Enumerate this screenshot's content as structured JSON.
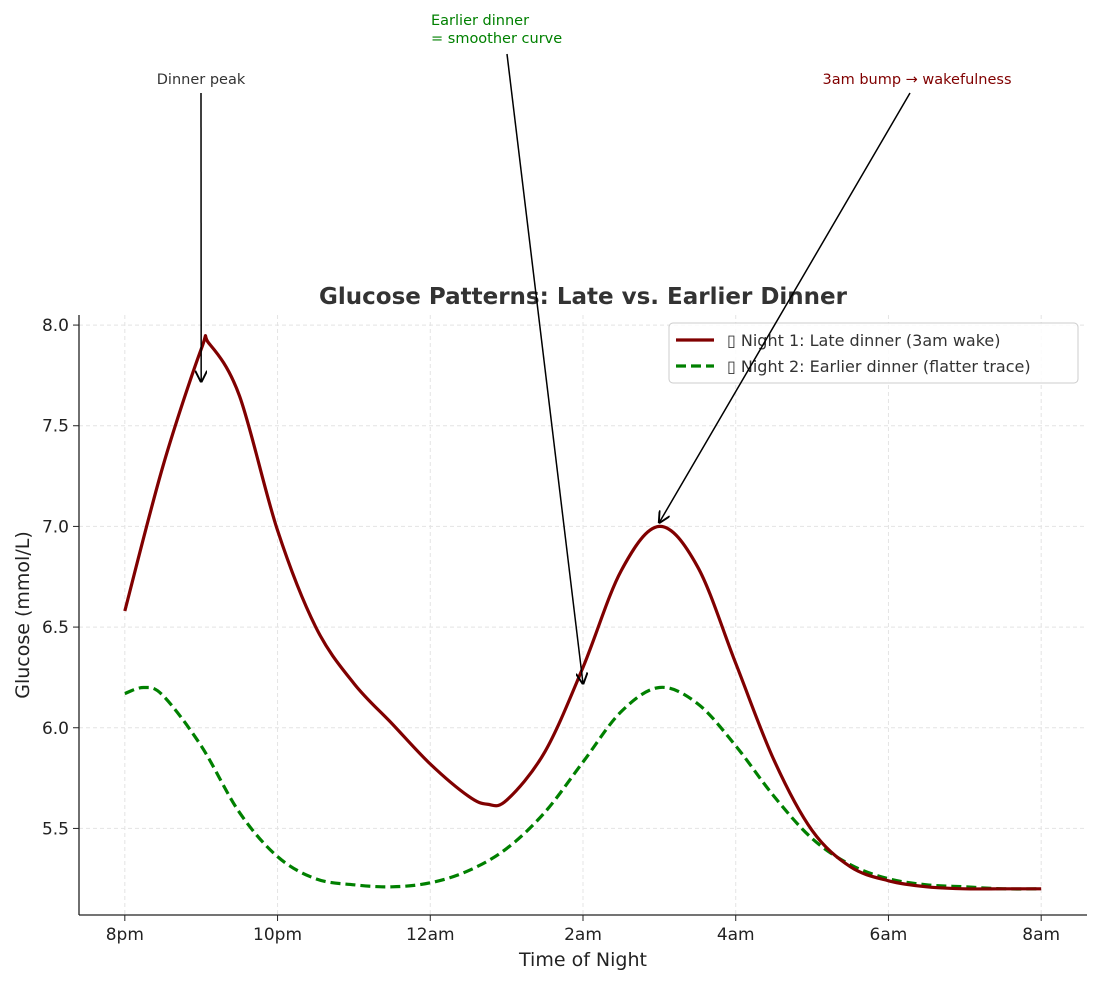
{
  "chart_data": {
    "type": "line",
    "title": "Glucose Patterns: Late vs. Earlier Dinner",
    "xlabel": "Time of Night",
    "ylabel": "Glucose (mmol/L)",
    "x_unit": "hours after 8pm",
    "xlim": [
      -0.6,
      12.6
    ],
    "ylim": [
      5.07,
      8.05
    ],
    "x_ticks": [
      0,
      2,
      4,
      6,
      8,
      10,
      12
    ],
    "x_tick_labels": [
      "8pm",
      "10pm",
      "12am",
      "2am",
      "4am",
      "6am",
      "8am"
    ],
    "y_ticks": [
      5.5,
      6.0,
      6.5,
      7.0,
      7.5,
      8.0
    ],
    "y_tick_labels": [
      "5.5",
      "6.0",
      "6.5",
      "7.0",
      "7.5",
      "8.0"
    ],
    "grid": true,
    "legend_position": "top-right",
    "series": [
      {
        "name": "▯ Night 1: Late dinner (3am wake)",
        "color": "#800000",
        "style": "solid",
        "x": [
          0,
          0.5,
          1,
          1.1,
          1.5,
          2,
          2.5,
          3,
          3.5,
          4,
          4.5,
          4.75,
          5,
          5.5,
          6,
          6.5,
          7,
          7.5,
          8,
          8.5,
          9,
          9.5,
          10,
          10.5,
          11,
          11.5,
          12
        ],
        "y": [
          6.58,
          7.3,
          7.88,
          7.91,
          7.65,
          6.98,
          6.5,
          6.22,
          6.02,
          5.82,
          5.66,
          5.62,
          5.64,
          5.88,
          6.3,
          6.78,
          7.0,
          6.8,
          6.32,
          5.84,
          5.49,
          5.31,
          5.24,
          5.21,
          5.2,
          5.2,
          5.2
        ]
      },
      {
        "name": "▯ Night 2: Earlier dinner (flatter trace)",
        "color": "#008000",
        "style": "dashed",
        "x": [
          0,
          0.25,
          0.5,
          1,
          1.5,
          2,
          2.5,
          3,
          3.5,
          4,
          4.5,
          5,
          5.5,
          6,
          6.5,
          7,
          7.5,
          8,
          8.5,
          9,
          9.5,
          10,
          10.5,
          11,
          11.5,
          12
        ],
        "y": [
          6.17,
          6.2,
          6.16,
          5.91,
          5.58,
          5.36,
          5.25,
          5.22,
          5.21,
          5.23,
          5.29,
          5.4,
          5.58,
          5.83,
          6.08,
          6.2,
          6.12,
          5.91,
          5.66,
          5.45,
          5.32,
          5.25,
          5.22,
          5.21,
          5.2,
          5.2
        ]
      }
    ],
    "annotations": [
      {
        "text": "Dinner peak",
        "color": "#333333",
        "target": [
          1,
          7.72
        ]
      },
      {
        "text": "Earlier dinner\n= smoother curve",
        "color": "#008000",
        "target": [
          6,
          6.22
        ]
      },
      {
        "text": "3am bump → wakefulness",
        "color": "#800000",
        "target": [
          7,
          7.02
        ]
      }
    ]
  }
}
